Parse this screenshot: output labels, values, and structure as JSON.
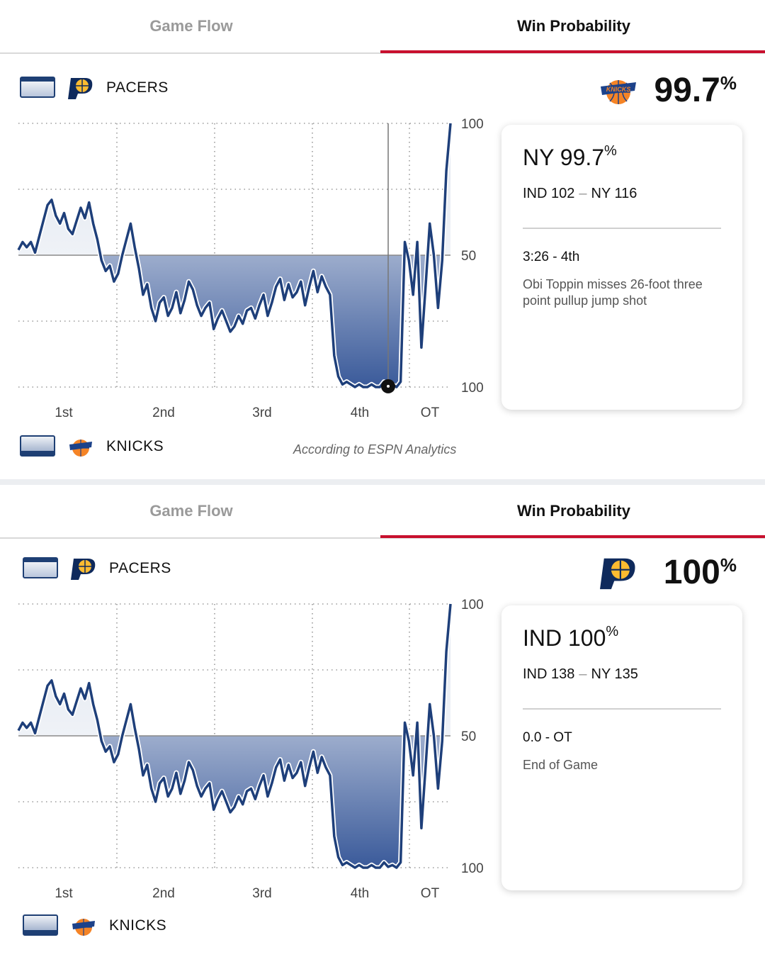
{
  "panels": [
    {
      "tabs": {
        "game_flow": "Game Flow",
        "win_probability": "Win Probability"
      },
      "legend": {
        "top_team": "PACERS",
        "bottom_team": "KNICKS"
      },
      "big_probability": {
        "value": "99.7",
        "unit": "%",
        "team_logo": "knicks-logo"
      },
      "card": {
        "team": "NY",
        "prob": "99.7",
        "unit": "%",
        "score_away": "IND 102",
        "score_sep": "–",
        "score_home": "NY 116",
        "time": "3:26 - 4th",
        "description": "Obi Toppin misses 26-foot three point pullup jump shot"
      },
      "attribution": "According to ESPN Analytics",
      "chart_data": {
        "type": "area",
        "y_tick_labels": [
          "100",
          "50",
          "100"
        ],
        "quarters": [
          "1st",
          "2nd",
          "3rd",
          "4th",
          "OT"
        ],
        "ylim": [
          0,
          100
        ],
        "grid": true,
        "marker_index": 89,
        "x": [
          0,
          1,
          2,
          3,
          4,
          5,
          6,
          7,
          8,
          9,
          10,
          11,
          12,
          13,
          14,
          15,
          16,
          17,
          18,
          19,
          20,
          21,
          22,
          23,
          24,
          25,
          26,
          27,
          28,
          29,
          30,
          31,
          32,
          33,
          34,
          35,
          36,
          37,
          38,
          39,
          40,
          41,
          42,
          43,
          44,
          45,
          46,
          47,
          48,
          49,
          50,
          51,
          52,
          53,
          54,
          55,
          56,
          57,
          58,
          59,
          60,
          61,
          62,
          63,
          64,
          65,
          66,
          67,
          68,
          69,
          70,
          71,
          72,
          73,
          74,
          75,
          76,
          77,
          78,
          79,
          80,
          81,
          82,
          83,
          84,
          85,
          86,
          87,
          88,
          89,
          90,
          91,
          92,
          93,
          94,
          95,
          96,
          97,
          98,
          99,
          100,
          101,
          102,
          103,
          104
        ],
        "pacers_win_pct": [
          52,
          55,
          53,
          55,
          51,
          57,
          63,
          69,
          71,
          65,
          62,
          66,
          60,
          58,
          63,
          68,
          64,
          70,
          62,
          56,
          48,
          44,
          46,
          40,
          43,
          50,
          56,
          62,
          53,
          45,
          35,
          39,
          30,
          25,
          32,
          34,
          27,
          30,
          36,
          28,
          33,
          40,
          37,
          31,
          27,
          30,
          32,
          22,
          26,
          29,
          25,
          21,
          23,
          27,
          24,
          29,
          30,
          26,
          31,
          35,
          27,
          32,
          38,
          41,
          33,
          39,
          34,
          36,
          40,
          31,
          38,
          44,
          36,
          42,
          38,
          35,
          12,
          4,
          1,
          2,
          1,
          0,
          1,
          0,
          0,
          1,
          0,
          0,
          2,
          0.3,
          1,
          0,
          2,
          55,
          48,
          35,
          55,
          15,
          38,
          62,
          50,
          30,
          48,
          82,
          100
        ],
        "note": "panel 1 event marker at 4th quarter 3:26"
      }
    },
    {
      "tabs": {
        "game_flow": "Game Flow",
        "win_probability": "Win Probability"
      },
      "legend": {
        "top_team": "PACERS",
        "bottom_team": "KNICKS"
      },
      "big_probability": {
        "value": "100",
        "unit": "%",
        "team_logo": "pacers-logo"
      },
      "card": {
        "team": "IND",
        "prob": "100",
        "unit": "%",
        "score_away": "IND 138",
        "score_sep": "–",
        "score_home": "NY 135",
        "time": "0.0 - OT",
        "description": "End of Game"
      },
      "attribution": "",
      "chart_data": {
        "type": "area",
        "y_tick_labels": [
          "100",
          "50",
          "100"
        ],
        "quarters": [
          "1st",
          "2nd",
          "3rd",
          "4th",
          "OT"
        ],
        "ylim": [
          0,
          100
        ],
        "grid": true,
        "marker_index": null,
        "x": [
          0,
          1,
          2,
          3,
          4,
          5,
          6,
          7,
          8,
          9,
          10,
          11,
          12,
          13,
          14,
          15,
          16,
          17,
          18,
          19,
          20,
          21,
          22,
          23,
          24,
          25,
          26,
          27,
          28,
          29,
          30,
          31,
          32,
          33,
          34,
          35,
          36,
          37,
          38,
          39,
          40,
          41,
          42,
          43,
          44,
          45,
          46,
          47,
          48,
          49,
          50,
          51,
          52,
          53,
          54,
          55,
          56,
          57,
          58,
          59,
          60,
          61,
          62,
          63,
          64,
          65,
          66,
          67,
          68,
          69,
          70,
          71,
          72,
          73,
          74,
          75,
          76,
          77,
          78,
          79,
          80,
          81,
          82,
          83,
          84,
          85,
          86,
          87,
          88,
          89,
          90,
          91,
          92,
          93,
          94,
          95,
          96,
          97,
          98,
          99,
          100,
          101,
          102,
          103,
          104
        ],
        "pacers_win_pct": [
          52,
          55,
          53,
          55,
          51,
          57,
          63,
          69,
          71,
          65,
          62,
          66,
          60,
          58,
          63,
          68,
          64,
          70,
          62,
          56,
          48,
          44,
          46,
          40,
          43,
          50,
          56,
          62,
          53,
          45,
          35,
          39,
          30,
          25,
          32,
          34,
          27,
          30,
          36,
          28,
          33,
          40,
          37,
          31,
          27,
          30,
          32,
          22,
          26,
          29,
          25,
          21,
          23,
          27,
          24,
          29,
          30,
          26,
          31,
          35,
          27,
          32,
          38,
          41,
          33,
          39,
          34,
          36,
          40,
          31,
          38,
          44,
          36,
          42,
          38,
          35,
          12,
          4,
          1,
          2,
          1,
          0,
          1,
          0,
          0,
          1,
          0,
          0,
          2,
          0.3,
          1,
          0,
          2,
          55,
          48,
          35,
          55,
          15,
          38,
          62,
          50,
          30,
          48,
          82,
          100
        ]
      }
    }
  ]
}
